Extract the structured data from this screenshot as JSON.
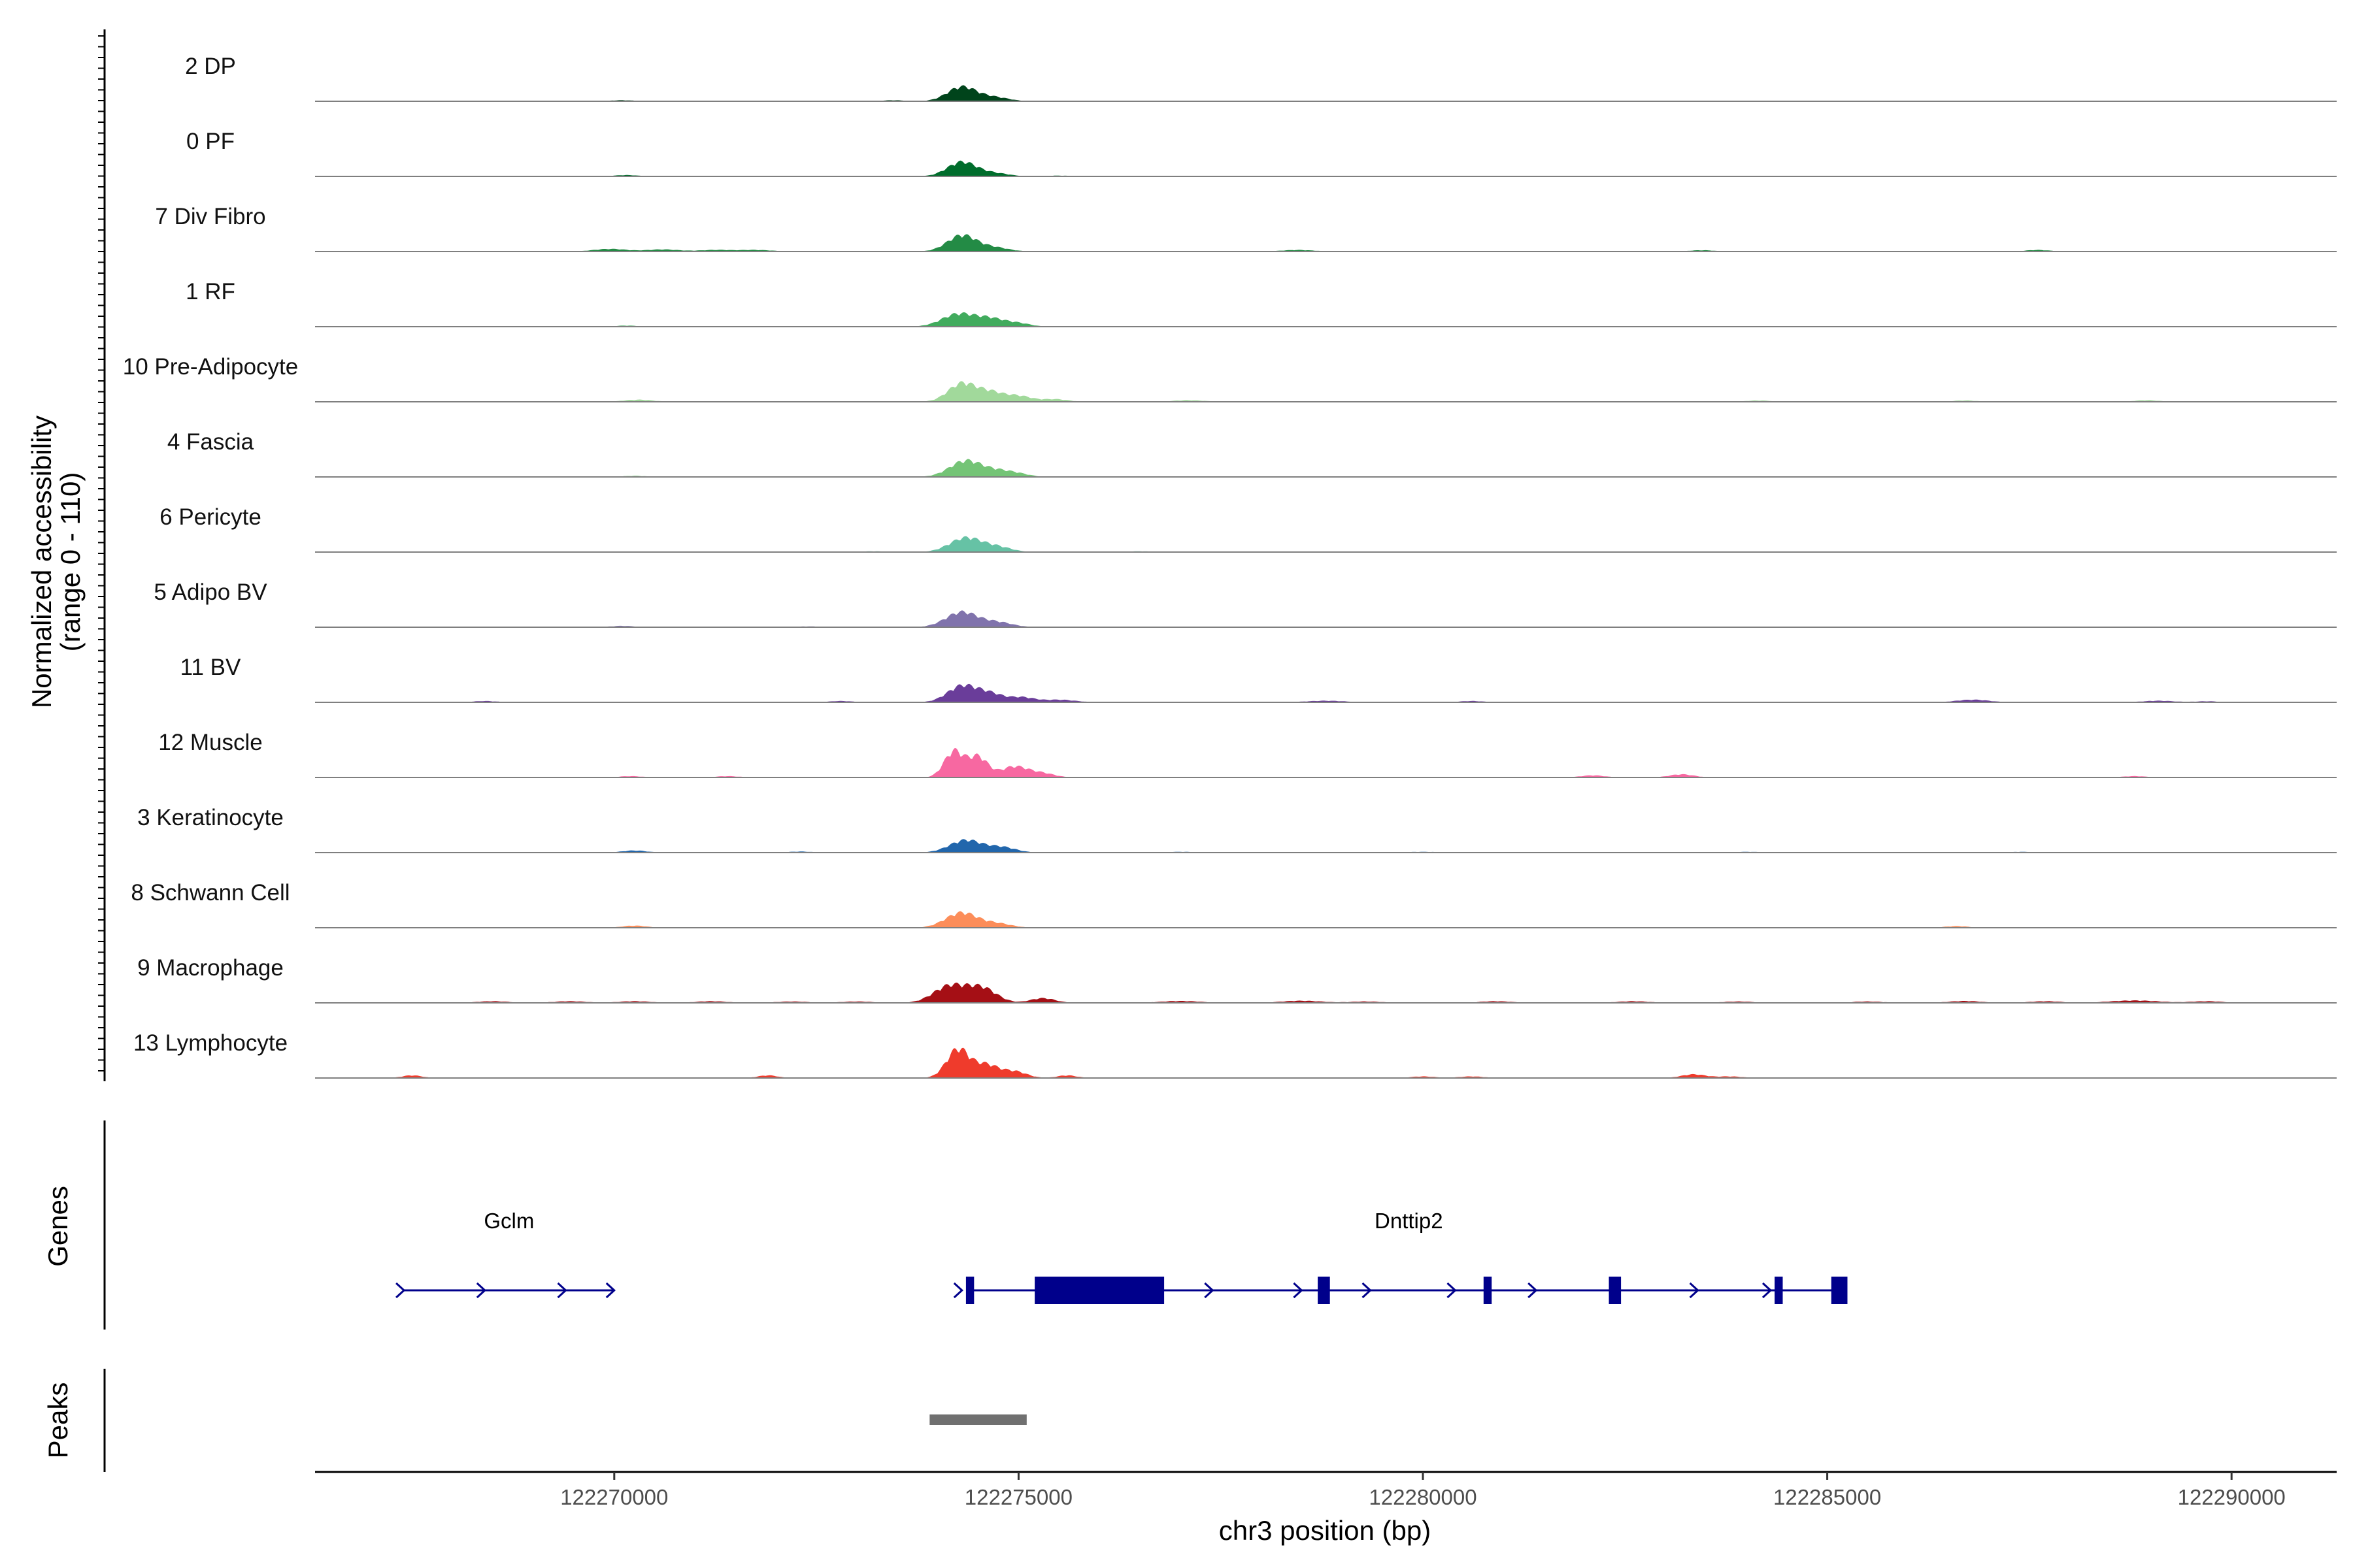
{
  "chart_data": {
    "type": "area",
    "title": "",
    "ylabel_line1": "Normalized accessibility",
    "ylabel_line2": "(range 0 - 110)",
    "ylim": [
      0,
      110
    ],
    "xlabel": "chr3 position (bp)",
    "xlim": [
      122266300,
      122291300
    ],
    "x_ticks": [
      122270000,
      122275000,
      122280000,
      122285000,
      122290000
    ],
    "x_tick_labels": [
      "122270000",
      "122275000",
      "122280000",
      "122285000",
      "122290000"
    ],
    "tracks": [
      {
        "label": "2 DP",
        "color": "#00441b",
        "peaks": [
          [
            122274300,
            55,
            180
          ],
          [
            122274700,
            15,
            180
          ],
          [
            122270100,
            4,
            150
          ],
          [
            122273450,
            4,
            150
          ]
        ]
      },
      {
        "label": "0 PF",
        "color": "#006d2c",
        "peaks": [
          [
            122274300,
            55,
            180
          ],
          [
            122274700,
            12,
            180
          ],
          [
            122270150,
            5,
            150
          ],
          [
            122275500,
            3,
            150
          ]
        ]
      },
      {
        "label": "7 Div Fibro",
        "color": "#238b45",
        "peaks": [
          [
            122274300,
            62,
            180
          ],
          [
            122274700,
            15,
            180
          ],
          [
            122269950,
            10,
            200
          ],
          [
            122270600,
            8,
            200
          ],
          [
            122271250,
            6,
            200
          ],
          [
            122271750,
            6,
            200
          ],
          [
            122278450,
            6,
            200
          ],
          [
            122283450,
            5,
            150
          ],
          [
            122287600,
            6,
            150
          ]
        ]
      },
      {
        "label": "1 RF",
        "color": "#41ab5d",
        "peaks": [
          [
            122274250,
            48,
            200
          ],
          [
            122274650,
            30,
            180
          ],
          [
            122275000,
            12,
            150
          ],
          [
            122270150,
            4,
            150
          ]
        ]
      },
      {
        "label": "10 Pre-Adipocyte",
        "color": "#a1d99b",
        "peaks": [
          [
            122274300,
            70,
            170
          ],
          [
            122274650,
            35,
            160
          ],
          [
            122275000,
            22,
            160
          ],
          [
            122275450,
            10,
            160
          ],
          [
            122270300,
            8,
            180
          ],
          [
            122277100,
            6,
            200
          ],
          [
            122284150,
            5,
            150
          ],
          [
            122286700,
            5,
            150
          ],
          [
            122288950,
            6,
            150
          ]
        ]
      },
      {
        "label": "4 Fascia",
        "color": "#74c476",
        "peaks": [
          [
            122274350,
            62,
            200
          ],
          [
            122274750,
            20,
            170
          ],
          [
            122275000,
            10,
            150
          ],
          [
            122270250,
            4,
            150
          ]
        ]
      },
      {
        "label": "6 Pericyte",
        "color": "#66c2a5",
        "peaks": [
          [
            122274350,
            55,
            200
          ],
          [
            122274750,
            18,
            170
          ],
          [
            122273200,
            3,
            150
          ],
          [
            122276500,
            3,
            150
          ]
        ]
      },
      {
        "label": "5 Adipo BV",
        "color": "#8073ac",
        "peaks": [
          [
            122274300,
            58,
            200
          ],
          [
            122274750,
            18,
            180
          ],
          [
            122270100,
            5,
            150
          ],
          [
            122272400,
            3,
            150
          ]
        ]
      },
      {
        "label": "11 BV",
        "color": "#6a3d9a",
        "peaks": [
          [
            122274300,
            62,
            180
          ],
          [
            122274650,
            32,
            170
          ],
          [
            122275050,
            18,
            150
          ],
          [
            122275500,
            10,
            200
          ],
          [
            122268400,
            5,
            150
          ],
          [
            122272800,
            5,
            150
          ],
          [
            122278800,
            6,
            250
          ],
          [
            122280600,
            5,
            150
          ],
          [
            122286800,
            10,
            200
          ],
          [
            122289100,
            6,
            200
          ],
          [
            122289700,
            4,
            150
          ]
        ]
      },
      {
        "label": "12 Muscle",
        "color": "#f768a1",
        "peaks": [
          [
            122274200,
            100,
            120
          ],
          [
            122274500,
            78,
            120
          ],
          [
            122274950,
            42,
            170
          ],
          [
            122275300,
            15,
            150
          ],
          [
            122270200,
            5,
            150
          ],
          [
            122271400,
            5,
            150
          ],
          [
            122282100,
            8,
            150
          ],
          [
            122283200,
            12,
            150
          ],
          [
            122288800,
            5,
            150
          ]
        ]
      },
      {
        "label": "3 Keratinocyte",
        "color": "#2166ac",
        "peaks": [
          [
            122274350,
            48,
            200
          ],
          [
            122274800,
            20,
            170
          ],
          [
            122270250,
            8,
            150
          ],
          [
            122272300,
            4,
            150
          ],
          [
            122277000,
            3,
            200
          ],
          [
            122280000,
            3,
            200
          ],
          [
            122284000,
            3,
            200
          ],
          [
            122287400,
            3,
            150
          ]
        ]
      },
      {
        "label": "8 Schwann Cell",
        "color": "#fc8d59",
        "peaks": [
          [
            122274300,
            58,
            200
          ],
          [
            122274750,
            15,
            170
          ],
          [
            122270250,
            8,
            150
          ],
          [
            122286600,
            6,
            150
          ]
        ]
      },
      {
        "label": "9 Macrophage",
        "color": "#a50f15",
        "peaks": [
          [
            122274150,
            65,
            200
          ],
          [
            122274550,
            55,
            180
          ],
          [
            122275300,
            18,
            150
          ],
          [
            122268500,
            6,
            200
          ],
          [
            122269450,
            6,
            200
          ],
          [
            122270250,
            6,
            200
          ],
          [
            122271200,
            6,
            200
          ],
          [
            122272200,
            5,
            200
          ],
          [
            122273000,
            5,
            200
          ],
          [
            122277000,
            7,
            250
          ],
          [
            122278500,
            8,
            250
          ],
          [
            122279300,
            5,
            200
          ],
          [
            122280900,
            6,
            200
          ],
          [
            122282600,
            6,
            200
          ],
          [
            122283900,
            5,
            200
          ],
          [
            122285500,
            5,
            200
          ],
          [
            122286700,
            7,
            200
          ],
          [
            122287700,
            6,
            200
          ],
          [
            122288800,
            9,
            300
          ],
          [
            122289700,
            6,
            200
          ]
        ]
      },
      {
        "label": "13 Lymphocyte",
        "color": "#ef3b2c",
        "peaks": [
          [
            122274250,
            110,
            140
          ],
          [
            122274600,
            50,
            150
          ],
          [
            122274950,
            25,
            150
          ],
          [
            122275600,
            10,
            120
          ],
          [
            122267500,
            10,
            120
          ],
          [
            122271900,
            10,
            120
          ],
          [
            122280000,
            6,
            150
          ],
          [
            122280600,
            6,
            150
          ],
          [
            122283350,
            14,
            150
          ],
          [
            122283800,
            6,
            150
          ]
        ]
      }
    ],
    "genes_label": "Genes",
    "genes": [
      {
        "name": "Gclm",
        "start": 122267400,
        "end": 122270000,
        "strand": "+",
        "exons": [],
        "arrows": [
          122267400,
          122268400,
          122269400,
          122270000
        ]
      },
      {
        "name": "Dnttip2",
        "start": 122274400,
        "end": 122285250,
        "strand": "+",
        "exons": [
          [
            122274350,
            122274450
          ],
          [
            122275200,
            122276800
          ],
          [
            122278700,
            122278850
          ],
          [
            122280750,
            122280850
          ],
          [
            122282300,
            122282450
          ],
          [
            122284350,
            122284450
          ],
          [
            122285050,
            122285250
          ]
        ],
        "arrows": [
          122274300,
          122277400,
          122278500,
          122279350,
          122280400,
          122281400,
          122283400,
          122284300
        ]
      }
    ],
    "peaks_label": "Peaks",
    "peak_regions": [
      [
        122273900,
        122275100
      ]
    ],
    "peak_color": "#707070",
    "gene_color": "#00008b"
  }
}
